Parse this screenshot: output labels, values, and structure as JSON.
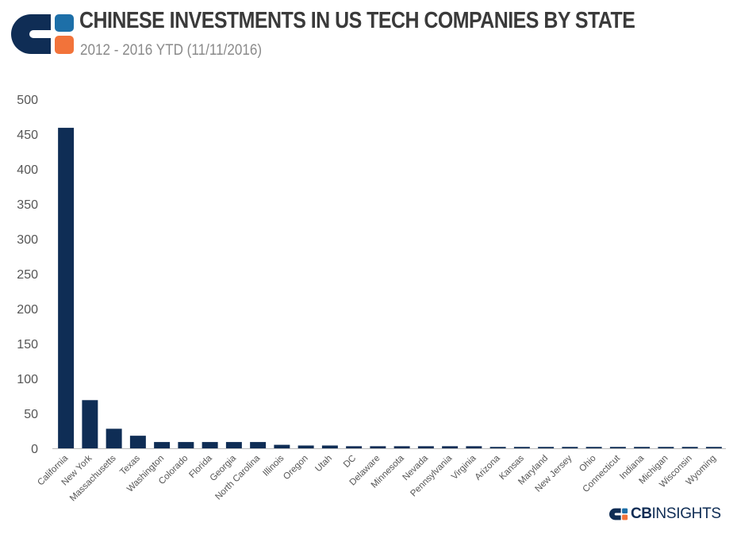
{
  "header": {
    "title": "CHINESE INVESTMENTS IN US TECH COMPANIES BY STATE",
    "subtitle": "2012 - 2016 YTD (11/11/2016)"
  },
  "brand": {
    "logo_icon": "cb-insights-logo-icon",
    "footer_cb": "CB",
    "footer_insights": "INSIGHTS",
    "colors": {
      "navy": "#0f2d55",
      "blue": "#1d6fa8",
      "orange": "#f2733a"
    }
  },
  "chart_data": {
    "type": "bar",
    "categories": [
      "California",
      "New York",
      "Massachusetts",
      "Texas",
      "Washington",
      "Colorado",
      "Florida",
      "Georgia",
      "North Carolina",
      "Illinois",
      "Oregon",
      "Utah",
      "DC",
      "Delaware",
      "Minnesota",
      "Nevada",
      "Pennsylvania",
      "Virginia",
      "Arizona",
      "Kansas",
      "Maryland",
      "New Jersey",
      "Ohio",
      "Connecticut",
      "Indiana",
      "Michigan",
      "Wisconsin",
      "Wyoming"
    ],
    "values": [
      459,
      69,
      28,
      18,
      9,
      9,
      9,
      9,
      9,
      5,
      4,
      4,
      3,
      3,
      3,
      3,
      3,
      3,
      2,
      2,
      2,
      2,
      2,
      2,
      2,
      2,
      2,
      2
    ],
    "title": "CHINESE INVESTMENTS IN US TECH COMPANIES BY STATE",
    "ylim": [
      0,
      500
    ],
    "yticks": [
      "0",
      "50",
      "100",
      "150",
      "200",
      "250",
      "300",
      "350",
      "400",
      "450",
      "500"
    ],
    "grid": false,
    "bar_color": "#0f2d55"
  }
}
